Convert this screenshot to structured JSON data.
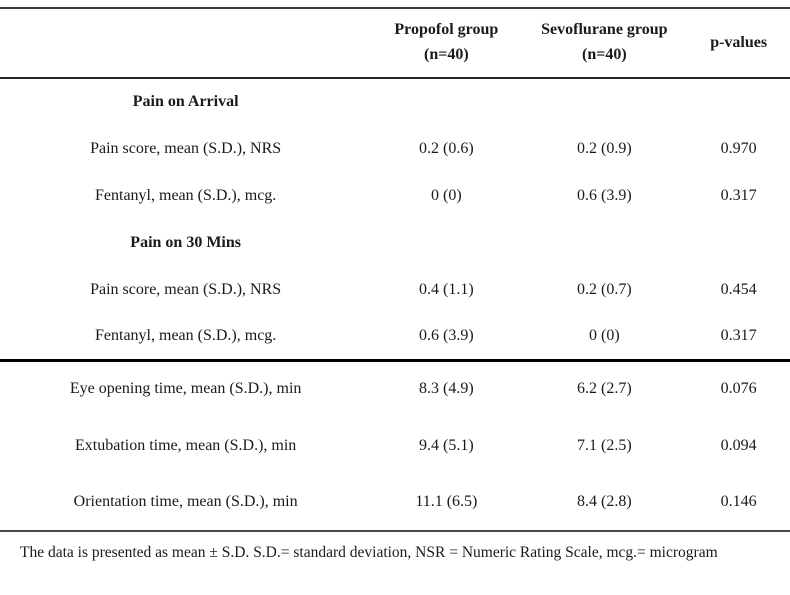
{
  "table": {
    "columns": [
      {
        "label": ""
      },
      {
        "label": "Propofol group",
        "sub": "(n=40)"
      },
      {
        "label": "Sevoflurane group",
        "sub": "(n=40)"
      },
      {
        "label": "p-values"
      }
    ],
    "rows": [
      {
        "type": "section",
        "label": "Pain on Arrival"
      },
      {
        "type": "data",
        "label": "Pain score, mean (S.D.), NRS",
        "propofol": "0.2 (0.6)",
        "sevoflurane": "0.2 (0.9)",
        "p": "0.970"
      },
      {
        "type": "data",
        "label": "Fentanyl, mean (S.D.), mcg.",
        "propofol": "0 (0)",
        "sevoflurane": "0.6 (3.9)",
        "p": "0.317"
      },
      {
        "type": "section",
        "label": "Pain on 30 Mins"
      },
      {
        "type": "data",
        "label": "Pain score, mean (S.D.), NRS",
        "propofol": "0.4 (1.1)",
        "sevoflurane": "0.2 (0.7)",
        "p": "0.454"
      },
      {
        "type": "data",
        "label": "Fentanyl, mean (S.D.), mcg.",
        "propofol": "0.6 (3.9)",
        "sevoflurane": "0 (0)",
        "p": "0.317"
      },
      {
        "type": "data",
        "label": "Eye opening time, mean (S.D.), min",
        "propofol": "8.3 (4.9)",
        "sevoflurane": "6.2 (2.7)",
        "p": "0.076"
      },
      {
        "type": "data",
        "label": "Extubation time, mean (S.D.), min",
        "propofol": "9.4 (5.1)",
        "sevoflurane": "7.1 (2.5)",
        "p": "0.094"
      },
      {
        "type": "data",
        "label": "Orientation time, mean (S.D.), min",
        "propofol": "11.1 (6.5)",
        "sevoflurane": "8.4 (2.8)",
        "p": "0.146"
      }
    ],
    "footnote": "The data is presented as mean ± S.D. S.D.= standard deviation, NSR = Numeric Rating Scale, mcg.= microgram"
  }
}
